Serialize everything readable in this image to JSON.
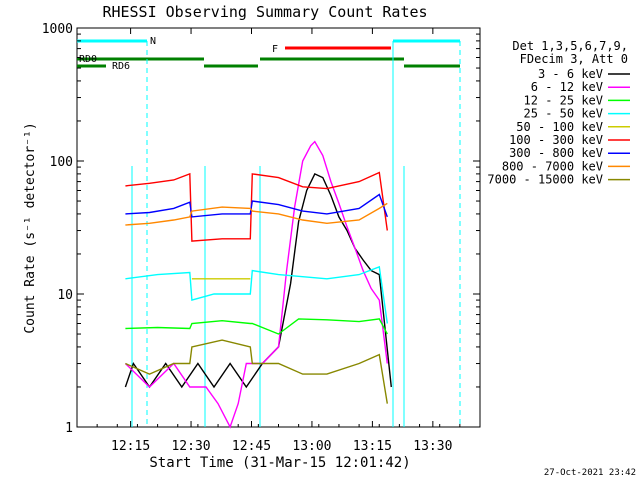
{
  "chart_data": {
    "type": "line",
    "title": "RHESSI Observing Summary Count Rates",
    "xlabel": "Start Time (31-Mar-15 12:01:42)",
    "ylabel": "Count Rate (s⁻¹ detector⁻¹)",
    "yscale": "log",
    "ylim": [
      1,
      1000
    ],
    "xlim_minutes": [
      0,
      100
    ],
    "x_ticks": [
      {
        "label": "12:15",
        "minute": 13.3
      },
      {
        "label": "12:30",
        "minute": 28.3
      },
      {
        "label": "12:45",
        "minute": 43.3
      },
      {
        "label": "13:00",
        "minute": 58.3
      },
      {
        "label": "13:15",
        "minute": 73.3
      },
      {
        "label": "13:30",
        "minute": 88.3
      }
    ],
    "y_ticks": [
      {
        "label": "1",
        "value": 1
      },
      {
        "label": "10",
        "value": 10
      },
      {
        "label": "100",
        "value": 100
      },
      {
        "label": "1000",
        "value": 1000
      }
    ],
    "legend_header": [
      "Det 1,3,5,6,7,9,",
      "FDecim 3, Att 0"
    ],
    "legend_placement": "right",
    "footer_date": "27-Oct-2021 23:42",
    "series": [
      {
        "name": "3 - 6 keV",
        "color": "#000000",
        "points": [
          [
            12,
            2
          ],
          [
            14,
            3
          ],
          [
            18,
            2
          ],
          [
            22,
            3
          ],
          [
            26,
            2
          ],
          [
            30,
            3
          ],
          [
            34,
            2
          ],
          [
            38,
            3
          ],
          [
            42,
            2
          ],
          [
            46,
            3
          ],
          [
            50,
            4
          ],
          [
            53,
            12
          ],
          [
            55,
            35
          ],
          [
            57,
            60
          ],
          [
            59,
            80
          ],
          [
            61,
            75
          ],
          [
            63,
            55
          ],
          [
            65,
            38
          ],
          [
            67,
            30
          ],
          [
            69,
            22
          ],
          [
            71,
            18
          ],
          [
            73,
            15
          ],
          [
            75,
            14
          ],
          [
            78,
            2
          ]
        ]
      },
      {
        "name": "6 - 12 keV",
        "color": "#ff00ff",
        "points": [
          [
            12,
            3
          ],
          [
            18,
            2
          ],
          [
            24,
            3
          ],
          [
            28,
            2
          ],
          [
            32,
            2
          ],
          [
            35,
            1.5
          ],
          [
            38,
            1
          ],
          [
            40,
            1.5
          ],
          [
            42,
            3
          ],
          [
            46,
            3
          ],
          [
            50,
            4
          ],
          [
            52,
            15
          ],
          [
            54,
            45
          ],
          [
            56,
            100
          ],
          [
            58,
            130
          ],
          [
            59,
            140
          ],
          [
            61,
            110
          ],
          [
            63,
            70
          ],
          [
            65,
            48
          ],
          [
            67,
            32
          ],
          [
            69,
            22
          ],
          [
            71,
            15
          ],
          [
            73,
            11
          ],
          [
            75,
            9
          ],
          [
            77,
            3
          ]
        ]
      },
      {
        "name": "12 - 25 keV",
        "color": "#00ff00",
        "points": [
          [
            12,
            5.5
          ],
          [
            20,
            5.6
          ],
          [
            28,
            5.5
          ],
          [
            28.5,
            6
          ],
          [
            36,
            6.3
          ],
          [
            43,
            6
          ],
          [
            43.5,
            6
          ],
          [
            50,
            5
          ],
          [
            55,
            6.5
          ],
          [
            62,
            6.4
          ],
          [
            70,
            6.2
          ],
          [
            75,
            6.5
          ],
          [
            77,
            5
          ]
        ]
      },
      {
        "name": "25 - 50 keV",
        "color": "#00ffff",
        "points": [
          [
            12,
            13
          ],
          [
            20,
            14
          ],
          [
            28,
            14.5
          ],
          [
            28.5,
            9
          ],
          [
            34,
            10
          ],
          [
            43,
            10
          ],
          [
            43.5,
            15
          ],
          [
            50,
            14
          ],
          [
            56,
            13.5
          ],
          [
            62,
            13
          ],
          [
            70,
            14
          ],
          [
            75,
            16
          ],
          [
            77,
            6
          ]
        ]
      },
      {
        "name": "50 - 100 keV",
        "color": "#cccc00",
        "points": [
          [
            28.5,
            13
          ],
          [
            36,
            13
          ],
          [
            43,
            13
          ]
        ]
      },
      {
        "name": "100 - 300 keV",
        "color": "#ff0000",
        "points": [
          [
            12,
            65
          ],
          [
            18,
            68
          ],
          [
            24,
            72
          ],
          [
            28,
            80
          ],
          [
            28.5,
            25
          ],
          [
            36,
            26
          ],
          [
            43,
            26
          ],
          [
            43.5,
            80
          ],
          [
            50,
            75
          ],
          [
            56,
            64
          ],
          [
            62,
            62
          ],
          [
            70,
            70
          ],
          [
            75,
            82
          ],
          [
            77,
            30
          ]
        ]
      },
      {
        "name": "300 - 800 keV",
        "color": "#0000ff",
        "points": [
          [
            12,
            40
          ],
          [
            18,
            41
          ],
          [
            24,
            44
          ],
          [
            28,
            49
          ],
          [
            28.5,
            38
          ],
          [
            36,
            40
          ],
          [
            43,
            40
          ],
          [
            43.5,
            50
          ],
          [
            50,
            47
          ],
          [
            56,
            42
          ],
          [
            62,
            40
          ],
          [
            70,
            44
          ],
          [
            75,
            56
          ],
          [
            77,
            38
          ]
        ]
      },
      {
        "name": "800 - 7000 keV",
        "color": "#ff8800",
        "points": [
          [
            12,
            33
          ],
          [
            18,
            34
          ],
          [
            24,
            36
          ],
          [
            28,
            38
          ],
          [
            28.5,
            42
          ],
          [
            36,
            45
          ],
          [
            43,
            44
          ],
          [
            43.5,
            42
          ],
          [
            50,
            40
          ],
          [
            56,
            36
          ],
          [
            62,
            34
          ],
          [
            70,
            36
          ],
          [
            75,
            44
          ],
          [
            77,
            48
          ]
        ]
      },
      {
        "name": "7000 - 15000 keV",
        "color": "#888800",
        "points": [
          [
            12,
            3
          ],
          [
            18,
            2.5
          ],
          [
            24,
            3
          ],
          [
            28,
            3
          ],
          [
            28.5,
            4
          ],
          [
            36,
            4.5
          ],
          [
            43,
            4
          ],
          [
            43.5,
            3
          ],
          [
            50,
            3
          ],
          [
            56,
            2.5
          ],
          [
            62,
            2.5
          ],
          [
            70,
            3
          ],
          [
            75,
            3.5
          ],
          [
            77,
            1.5
          ]
        ]
      }
    ],
    "flag_labels": [
      {
        "label": "N",
        "color": "#00ffff"
      },
      {
        "label": "F",
        "color": "#ff0000"
      },
      {
        "label": "RD0",
        "color": "#008000"
      },
      {
        "label": "RD6",
        "color": "#008000"
      }
    ]
  }
}
